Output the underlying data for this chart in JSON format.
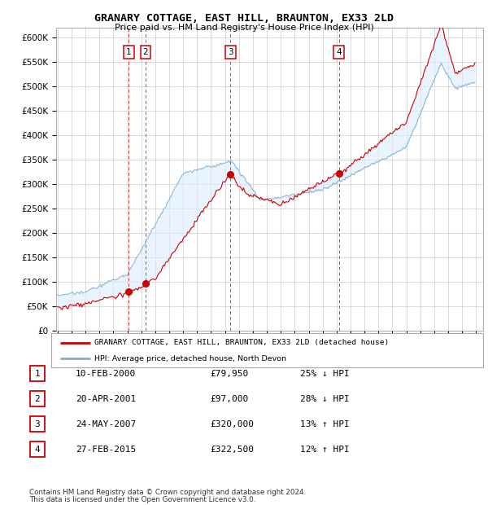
{
  "title": "GRANARY COTTAGE, EAST HILL, BRAUNTON, EX33 2LD",
  "subtitle": "Price paid vs. HM Land Registry's House Price Index (HPI)",
  "legend_line1": "GRANARY COTTAGE, EAST HILL, BRAUNTON, EX33 2LD (detached house)",
  "legend_line2": "HPI: Average price, detached house, North Devon",
  "sales": [
    {
      "num": 1,
      "date": "10-FEB-2000",
      "price": 79950,
      "pct": "25%",
      "dir": "↓",
      "x": 2000.11
    },
    {
      "num": 2,
      "date": "20-APR-2001",
      "price": 97000,
      "pct": "28%",
      "dir": "↓",
      "x": 2001.3
    },
    {
      "num": 3,
      "date": "24-MAY-2007",
      "price": 320000,
      "pct": "13%",
      "dir": "↑",
      "x": 2007.39
    },
    {
      "num": 4,
      "date": "27-FEB-2015",
      "price": 322500,
      "pct": "12%",
      "dir": "↑",
      "x": 2015.16
    }
  ],
  "table_data": [
    [
      "1",
      "10-FEB-2000",
      "£79,950",
      "25% ↓ HPI"
    ],
    [
      "2",
      "20-APR-2001",
      "£97,000",
      "28% ↓ HPI"
    ],
    [
      "3",
      "24-MAY-2007",
      "£320,000",
      "13% ↑ HPI"
    ],
    [
      "4",
      "27-FEB-2015",
      "£322,500",
      "12% ↑ HPI"
    ]
  ],
  "footnote1": "Contains HM Land Registry data © Crown copyright and database right 2024.",
  "footnote2": "This data is licensed under the Open Government Licence v3.0.",
  "red_color": "#cc0000",
  "blue_color": "#7ab0d4",
  "shade_color": "#ddeeff",
  "bg_color": "#ffffff",
  "grid_color": "#cccccc",
  "yticks": [
    0,
    50000,
    100000,
    150000,
    200000,
    250000,
    300000,
    350000,
    400000,
    450000,
    500000,
    550000,
    600000
  ],
  "ylabels": [
    "£0",
    "£50K",
    "£100K",
    "£150K",
    "£200K",
    "£250K",
    "£300K",
    "£350K",
    "£400K",
    "£450K",
    "£500K",
    "£550K",
    "£600K"
  ],
  "ylim_max": 620000,
  "xlim_start": 1994.9,
  "xlim_end": 2025.5
}
